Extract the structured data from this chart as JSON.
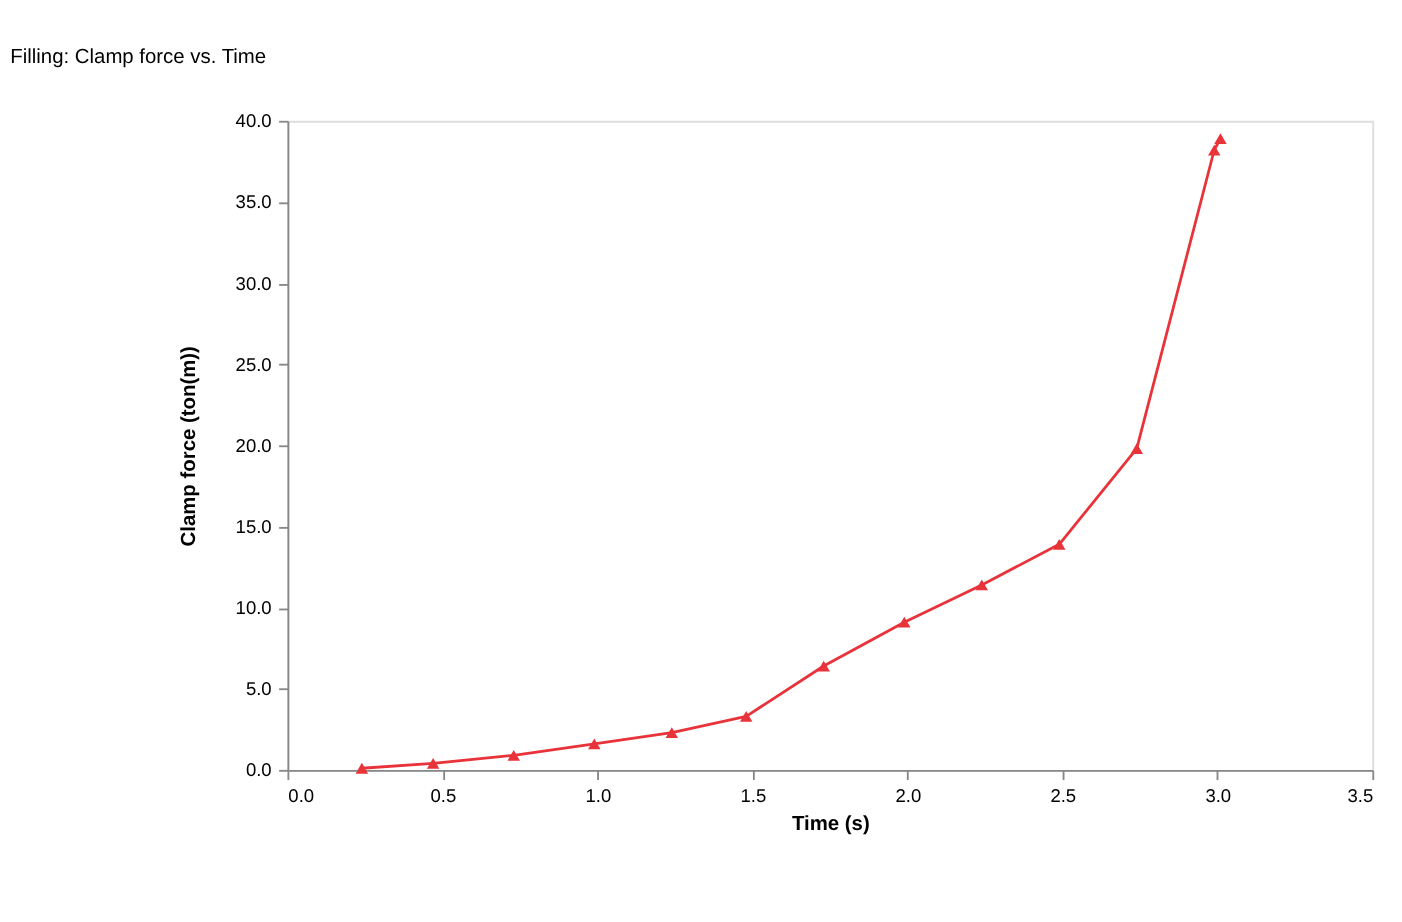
{
  "chart_data": {
    "type": "line",
    "title": "Filling: Clamp force vs. Time",
    "xlabel": "Time (s)",
    "ylabel": "Clamp force (ton(m))",
    "x": [
      0.24,
      0.47,
      0.73,
      0.99,
      1.24,
      1.48,
      1.73,
      1.99,
      2.24,
      2.49,
      2.74,
      2.99,
      3.01
    ],
    "series": [
      {
        "color": "#e8333a",
        "values": [
          0.1,
          0.4,
          0.9,
          1.6,
          2.3,
          3.3,
          6.4,
          9.1,
          11.4,
          13.9,
          19.8,
          38.2,
          38.9
        ]
      }
    ],
    "xlim": [
      0,
      3.5
    ],
    "xticks": [
      {
        "value": 0,
        "label": "0.0"
      },
      0.5,
      {
        "value": 1,
        "label": "1.0"
      },
      1.5,
      {
        "value": 2,
        "label": "2.0"
      },
      2.5,
      {
        "value": 3,
        "label": "3.0"
      },
      3.5
    ],
    "ylim": [
      0,
      40
    ],
    "yticks": [
      {
        "value": 0,
        "label": "0.0"
      },
      {
        "value": 5,
        "label": "5.0"
      },
      {
        "value": 10,
        "label": "10.0"
      },
      {
        "value": 15,
        "label": "15.0"
      },
      {
        "value": 20,
        "label": "20.0"
      },
      {
        "value": 25,
        "label": "25.0"
      },
      {
        "value": 30,
        "label": "30.0"
      },
      {
        "value": 35,
        "label": "35.0"
      },
      {
        "value": 40,
        "label": "40.0"
      }
    ],
    "grid": false,
    "marker": "triangle",
    "line_style": "solid",
    "legend": false
  }
}
